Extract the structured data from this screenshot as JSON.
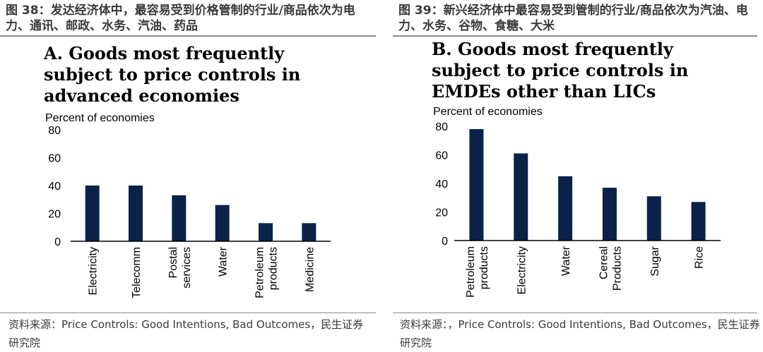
{
  "panels": [
    {
      "figure_title": "图 38：发达经济体中，最容易受到价格管制的行业/商品依次为电力、通讯、邮政、水务、汽油、药品",
      "source": "资料来源：Price Controls: Good Intentions, Bad Outcomes，民生证券研究院"
    },
    {
      "figure_title": "图 39：新兴经济体中最容易受到管制的行业/商品依次为汽油、电力、水务、谷物、食糖、大米",
      "source": "资料来源：，Price Controls: Good Intentions, Bad Outcomes，民生证券研究院"
    }
  ],
  "chart_data": [
    {
      "type": "bar",
      "title": "A. Goods most frequently subject to price controls in advanced economies",
      "ylabel": "Percent of economies",
      "xlabel": "",
      "ylim": [
        0,
        80
      ],
      "yticks": [
        0,
        20,
        40,
        60,
        80
      ],
      "categories": [
        [
          "Electricity"
        ],
        [
          "Telecomm"
        ],
        [
          "Postal",
          "services"
        ],
        [
          "Water"
        ],
        [
          "Petroleum",
          "products"
        ],
        [
          "Medicine"
        ]
      ],
      "values": [
        40,
        40,
        33,
        26,
        13,
        13
      ],
      "bar_color": "#0b2248",
      "grid": false
    },
    {
      "type": "bar",
      "title": "B. Goods most frequently subject to price controls in EMDEs other than LICs",
      "ylabel": "Percent of economies",
      "xlabel": "",
      "ylim": [
        0,
        80
      ],
      "yticks": [
        0,
        20,
        40,
        60,
        80
      ],
      "categories": [
        [
          "Petroleum",
          "products"
        ],
        [
          "Electricity"
        ],
        [
          "Water"
        ],
        [
          "Cereal",
          "Products"
        ],
        [
          "Sugar"
        ],
        [
          "Rice"
        ]
      ],
      "values": [
        78,
        61,
        45,
        37,
        31,
        27
      ],
      "bar_color": "#0b2248",
      "grid": false
    }
  ]
}
